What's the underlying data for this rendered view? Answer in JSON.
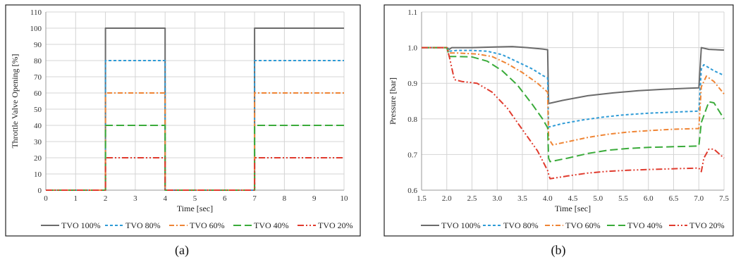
{
  "chart_data": [
    {
      "type": "line",
      "panel_label": "(a)",
      "xlabel": "Time [sec]",
      "ylabel": "Throttle Valve Opening [%]",
      "xlim": [
        0,
        10
      ],
      "ylim": [
        0,
        110
      ],
      "xticks": [
        0,
        1,
        2,
        3,
        4,
        5,
        6,
        7,
        8,
        9,
        10
      ],
      "yticks": [
        0,
        10,
        20,
        30,
        40,
        50,
        60,
        70,
        80,
        90,
        100,
        110
      ],
      "grid": true,
      "legend_position": "bottom",
      "series": [
        {
          "name": "TVO 100%",
          "color": "#6b6b6b",
          "dash": "solid",
          "points": [
            [
              0,
              0
            ],
            [
              2,
              0
            ],
            [
              2,
              100
            ],
            [
              4,
              100
            ],
            [
              4,
              0
            ],
            [
              7,
              0
            ],
            [
              7,
              100
            ],
            [
              10,
              100
            ]
          ]
        },
        {
          "name": "TVO 80%",
          "color": "#2e9bd6",
          "dash": "dash-short",
          "points": [
            [
              0,
              0
            ],
            [
              2,
              0
            ],
            [
              2,
              80
            ],
            [
              4,
              80
            ],
            [
              4,
              0
            ],
            [
              7,
              0
            ],
            [
              7,
              80
            ],
            [
              10,
              80
            ]
          ]
        },
        {
          "name": "TVO 60%",
          "color": "#ef8535",
          "dash": "dash-dot",
          "points": [
            [
              0,
              0
            ],
            [
              2,
              0
            ],
            [
              2,
              60
            ],
            [
              4,
              60
            ],
            [
              4,
              0
            ],
            [
              7,
              0
            ],
            [
              7,
              60
            ],
            [
              10,
              60
            ]
          ]
        },
        {
          "name": "TVO 40%",
          "color": "#3aab3a",
          "dash": "dash-long",
          "points": [
            [
              0,
              0
            ],
            [
              2,
              0
            ],
            [
              2,
              40
            ],
            [
              4,
              40
            ],
            [
              4,
              0
            ],
            [
              7,
              0
            ],
            [
              7,
              40
            ],
            [
              10,
              40
            ]
          ]
        },
        {
          "name": "TVO 20%",
          "color": "#e03b2e",
          "dash": "dash-dot-dot",
          "points": [
            [
              0,
              0
            ],
            [
              2,
              0
            ],
            [
              2,
              20
            ],
            [
              4,
              20
            ],
            [
              4,
              0
            ],
            [
              7,
              0
            ],
            [
              7,
              20
            ],
            [
              10,
              20
            ]
          ]
        }
      ]
    },
    {
      "type": "line",
      "panel_label": "(b)",
      "xlabel": "Time [sec]",
      "ylabel": "Pressure [bar]",
      "xlim": [
        1.5,
        7.5
      ],
      "ylim": [
        0.6,
        1.1
      ],
      "xticks": [
        "1.5",
        "2.0",
        "2.5",
        "3.0",
        "3.5",
        "4.0",
        "4.5",
        "5.0",
        "5.5",
        "6.0",
        "6.5",
        "7.0",
        "7.5"
      ],
      "yticks": [
        "0.6",
        "0.7",
        "0.8",
        "0.9",
        "1.0",
        "1.1"
      ],
      "grid": true,
      "legend_position": "bottom",
      "series": [
        {
          "name": "TVO 100%",
          "color": "#6b6b6b",
          "dash": "solid",
          "points": [
            [
              1.5,
              1.0
            ],
            [
              2.0,
              1.0
            ],
            [
              2.05,
              0.995
            ],
            [
              2.1,
              1.0
            ],
            [
              2.5,
              1.0
            ],
            [
              3.0,
              1.002
            ],
            [
              3.3,
              1.003
            ],
            [
              3.6,
              1.0
            ],
            [
              3.9,
              0.996
            ],
            [
              4.0,
              0.994
            ],
            [
              4.02,
              0.843
            ],
            [
              4.3,
              0.852
            ],
            [
              4.8,
              0.865
            ],
            [
              5.3,
              0.873
            ],
            [
              5.8,
              0.879
            ],
            [
              6.3,
              0.883
            ],
            [
              6.8,
              0.886
            ],
            [
              7.0,
              0.887
            ],
            [
              7.05,
              1.0
            ],
            [
              7.2,
              0.995
            ],
            [
              7.5,
              0.993
            ]
          ]
        },
        {
          "name": "TVO 80%",
          "color": "#2e9bd6",
          "dash": "dash-short",
          "points": [
            [
              1.5,
              1.0
            ],
            [
              2.0,
              1.0
            ],
            [
              2.05,
              0.99
            ],
            [
              2.2,
              0.992
            ],
            [
              2.5,
              0.992
            ],
            [
              2.8,
              0.99
            ],
            [
              3.1,
              0.98
            ],
            [
              3.4,
              0.96
            ],
            [
              3.7,
              0.94
            ],
            [
              3.9,
              0.922
            ],
            [
              4.0,
              0.915
            ],
            [
              4.02,
              0.777
            ],
            [
              4.3,
              0.787
            ],
            [
              4.7,
              0.797
            ],
            [
              5.1,
              0.805
            ],
            [
              5.5,
              0.811
            ],
            [
              6.0,
              0.816
            ],
            [
              6.5,
              0.819
            ],
            [
              7.0,
              0.822
            ],
            [
              7.05,
              0.94
            ],
            [
              7.1,
              0.952
            ],
            [
              7.3,
              0.935
            ],
            [
              7.5,
              0.922
            ]
          ]
        },
        {
          "name": "TVO 60%",
          "color": "#ef8535",
          "dash": "dash-dot",
          "points": [
            [
              1.5,
              1.0
            ],
            [
              2.0,
              1.0
            ],
            [
              2.05,
              0.985
            ],
            [
              2.2,
              0.985
            ],
            [
              2.6,
              0.982
            ],
            [
              2.9,
              0.975
            ],
            [
              3.2,
              0.955
            ],
            [
              3.5,
              0.93
            ],
            [
              3.8,
              0.9
            ],
            [
              4.0,
              0.875
            ],
            [
              4.02,
              0.745
            ],
            [
              4.1,
              0.727
            ],
            [
              4.4,
              0.736
            ],
            [
              4.8,
              0.748
            ],
            [
              5.2,
              0.757
            ],
            [
              5.6,
              0.763
            ],
            [
              6.0,
              0.767
            ],
            [
              6.5,
              0.771
            ],
            [
              7.0,
              0.773
            ],
            [
              7.05,
              0.89
            ],
            [
              7.15,
              0.92
            ],
            [
              7.3,
              0.905
            ],
            [
              7.5,
              0.87
            ]
          ]
        },
        {
          "name": "TVO 40%",
          "color": "#3aab3a",
          "dash": "dash-long",
          "points": [
            [
              1.5,
              1.0
            ],
            [
              2.0,
              1.0
            ],
            [
              2.05,
              0.975
            ],
            [
              2.2,
              0.975
            ],
            [
              2.5,
              0.974
            ],
            [
              2.8,
              0.962
            ],
            [
              3.1,
              0.935
            ],
            [
              3.4,
              0.895
            ],
            [
              3.7,
              0.84
            ],
            [
              3.9,
              0.8
            ],
            [
              4.0,
              0.775
            ],
            [
              4.02,
              0.69
            ],
            [
              4.05,
              0.68
            ],
            [
              4.4,
              0.69
            ],
            [
              4.8,
              0.703
            ],
            [
              5.2,
              0.712
            ],
            [
              5.6,
              0.717
            ],
            [
              6.0,
              0.72
            ],
            [
              6.5,
              0.722
            ],
            [
              7.0,
              0.724
            ],
            [
              7.05,
              0.79
            ],
            [
              7.2,
              0.848
            ],
            [
              7.3,
              0.845
            ],
            [
              7.5,
              0.8
            ]
          ]
        },
        {
          "name": "TVO 20%",
          "color": "#e03b2e",
          "dash": "dash-dot-dot",
          "points": [
            [
              1.5,
              1.0
            ],
            [
              2.0,
              1.0
            ],
            [
              2.05,
              0.975
            ],
            [
              2.15,
              0.91
            ],
            [
              2.3,
              0.905
            ],
            [
              2.6,
              0.9
            ],
            [
              2.9,
              0.875
            ],
            [
              3.2,
              0.83
            ],
            [
              3.5,
              0.77
            ],
            [
              3.8,
              0.71
            ],
            [
              4.0,
              0.655
            ],
            [
              4.03,
              0.64
            ],
            [
              4.05,
              0.632
            ],
            [
              4.4,
              0.64
            ],
            [
              4.8,
              0.648
            ],
            [
              5.2,
              0.653
            ],
            [
              5.6,
              0.656
            ],
            [
              6.0,
              0.658
            ],
            [
              6.5,
              0.66
            ],
            [
              7.0,
              0.662
            ],
            [
              7.05,
              0.652
            ],
            [
              7.1,
              0.69
            ],
            [
              7.2,
              0.715
            ],
            [
              7.3,
              0.715
            ],
            [
              7.5,
              0.69
            ]
          ]
        }
      ]
    }
  ]
}
